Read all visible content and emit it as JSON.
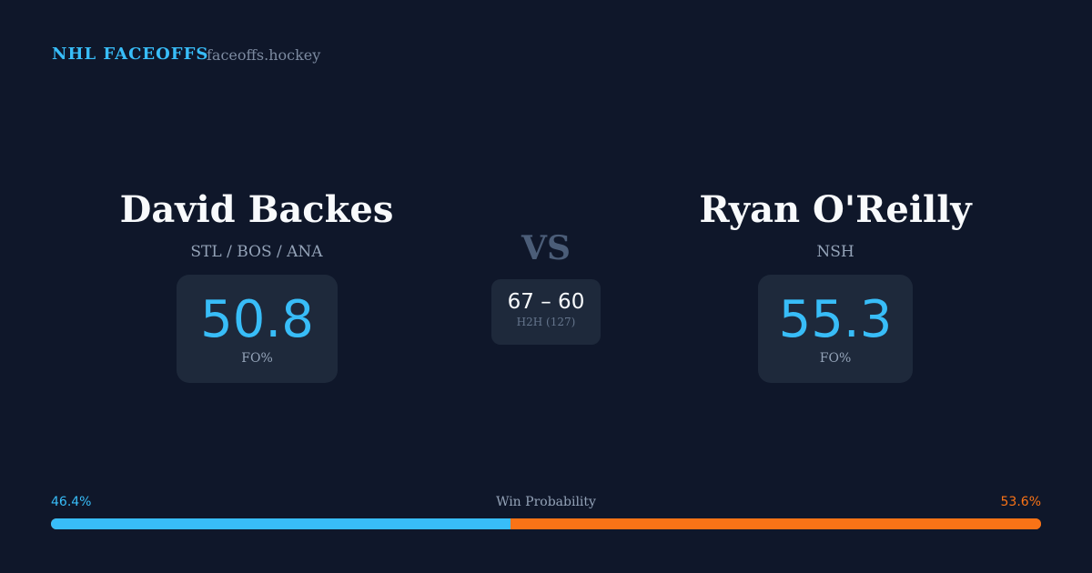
{
  "header": {
    "brand": "NHL FACEOFFS",
    "site": "faceoffs.hockey"
  },
  "player1": {
    "name": "David Backes",
    "teams": "STL / BOS / ANA",
    "fo_pct": "50.8",
    "fo_label": "FO%"
  },
  "player2": {
    "name": "Ryan O'Reilly",
    "teams": "NSH",
    "fo_pct": "55.3",
    "fo_label": "FO%"
  },
  "vs": "VS",
  "h2h": {
    "score": "67 – 60",
    "label": "H2H (127)"
  },
  "win_probability": {
    "label": "Win Probability",
    "p1": "46.4%",
    "p2": "53.6%",
    "p1_value": 46.4,
    "p2_value": 53.6,
    "p1_color": "#38bdf8",
    "p2_color": "#f97316"
  }
}
